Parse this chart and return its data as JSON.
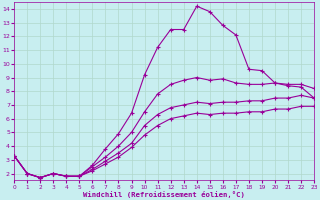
{
  "xlabel": "Windchill (Refroidissement éolien,°C)",
  "xlim": [
    0,
    23
  ],
  "ylim": [
    1.5,
    14.5
  ],
  "yticks": [
    2,
    3,
    4,
    5,
    6,
    7,
    8,
    9,
    10,
    11,
    12,
    13,
    14
  ],
  "xticks": [
    0,
    1,
    2,
    3,
    4,
    5,
    6,
    7,
    8,
    9,
    10,
    11,
    12,
    13,
    14,
    15,
    16,
    17,
    18,
    19,
    20,
    21,
    22,
    23
  ],
  "background_color": "#c8eef0",
  "grid_color": "#b0d8cc",
  "line_color": "#990099",
  "curve1_x": [
    0,
    1,
    2,
    3,
    4,
    5,
    6,
    7,
    8,
    9,
    10,
    11,
    12,
    13,
    14,
    15,
    16,
    17,
    18,
    19,
    20,
    21,
    22,
    23
  ],
  "curve1_y": [
    3.3,
    2.0,
    1.7,
    2.0,
    1.8,
    1.8,
    2.6,
    3.8,
    4.9,
    6.4,
    9.2,
    11.2,
    12.5,
    12.5,
    14.2,
    13.8,
    12.8,
    12.1,
    9.6,
    9.5,
    8.6,
    8.4,
    8.3,
    7.5
  ],
  "curve2_x": [
    0,
    1,
    2,
    3,
    4,
    5,
    6,
    7,
    8,
    9,
    10,
    11,
    12,
    13,
    14,
    15,
    16,
    17,
    18,
    19,
    20,
    21,
    22,
    23
  ],
  "curve2_y": [
    3.3,
    2.0,
    1.7,
    2.0,
    1.8,
    1.8,
    2.5,
    3.2,
    4.0,
    5.0,
    6.5,
    7.8,
    8.5,
    8.8,
    9.0,
    8.8,
    8.9,
    8.6,
    8.5,
    8.5,
    8.6,
    8.5,
    8.5,
    8.2
  ],
  "curve3_x": [
    0,
    1,
    2,
    3,
    4,
    5,
    6,
    7,
    8,
    9,
    10,
    11,
    12,
    13,
    14,
    15,
    16,
    17,
    18,
    19,
    20,
    21,
    22,
    23
  ],
  "curve3_y": [
    3.3,
    2.0,
    1.7,
    2.0,
    1.8,
    1.8,
    2.3,
    2.9,
    3.5,
    4.2,
    5.5,
    6.3,
    6.8,
    7.0,
    7.2,
    7.1,
    7.2,
    7.2,
    7.3,
    7.3,
    7.5,
    7.5,
    7.7,
    7.5
  ],
  "curve4_x": [
    0,
    1,
    2,
    3,
    4,
    5,
    6,
    7,
    8,
    9,
    10,
    11,
    12,
    13,
    14,
    15,
    16,
    17,
    18,
    19,
    20,
    21,
    22,
    23
  ],
  "curve4_y": [
    3.3,
    2.0,
    1.7,
    2.0,
    1.8,
    1.8,
    2.2,
    2.7,
    3.2,
    3.9,
    4.8,
    5.5,
    6.0,
    6.2,
    6.4,
    6.3,
    6.4,
    6.4,
    6.5,
    6.5,
    6.7,
    6.7,
    6.9,
    6.9
  ]
}
